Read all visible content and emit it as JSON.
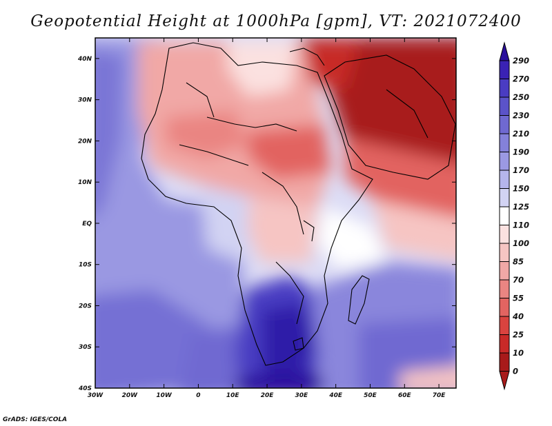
{
  "title": "Geopotential Height at 1000hPa [gpm], VT: 2021072400",
  "credit": "GrADS: IGES/COLA",
  "map": {
    "lon_range": [
      -30,
      75
    ],
    "lat_range": [
      -40,
      45
    ],
    "x_ticks": [
      "30W",
      "20W",
      "10W",
      "0",
      "10E",
      "20E",
      "30E",
      "40E",
      "50E",
      "60E",
      "70E"
    ],
    "y_ticks": [
      "40N",
      "30N",
      "20N",
      "10N",
      "EQ",
      "10S",
      "20S",
      "30S",
      "40S"
    ],
    "variable": "Geopotential Height",
    "level": "1000hPa",
    "units": "gpm",
    "valid_time": "2021072400"
  },
  "colorbar": {
    "labels": [
      "290",
      "270",
      "250",
      "230",
      "210",
      "190",
      "170",
      "150",
      "125",
      "110",
      "100",
      "85",
      "70",
      "55",
      "40",
      "25",
      "10",
      "0"
    ],
    "colors": [
      "#2a0f9c",
      "#3a22b4",
      "#4a3cc2",
      "#5b53c9",
      "#6f69d1",
      "#8481da",
      "#9b99e3",
      "#b5b5eb",
      "#d2d3f3",
      "#ffffff",
      "#fbe1e0",
      "#f6c5c3",
      "#f1a8a6",
      "#ea8582",
      "#e26461",
      "#d9433f",
      "#c82a28",
      "#a81a1a"
    ]
  }
}
